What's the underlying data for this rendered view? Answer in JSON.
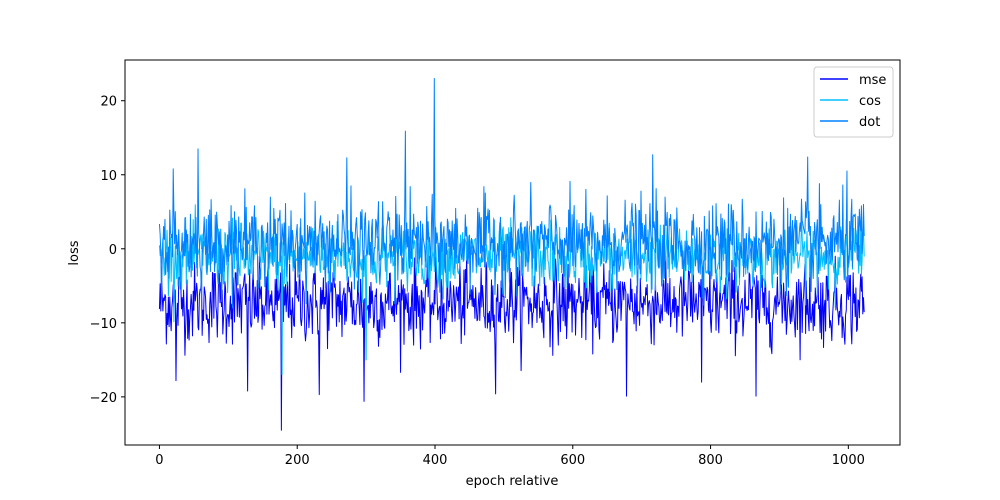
{
  "chart_data": {
    "type": "line",
    "title": "",
    "xlabel": "epoch relative",
    "ylabel": "loss",
    "xlim": [
      -50,
      1075
    ],
    "ylim": [
      -26.5,
      25.5
    ],
    "xticks": [
      0,
      200,
      400,
      600,
      800,
      1000
    ],
    "yticks": [
      -20,
      -10,
      0,
      10,
      20
    ],
    "grid": false,
    "legend_position": "top-right",
    "n_points": 1024,
    "series": [
      {
        "name": "mse",
        "color": "#0000ff",
        "center": -7.3,
        "spread": 2.7,
        "min": -24.5,
        "max": -1.0,
        "notable": [
          {
            "x": 177,
            "y": -24.5
          },
          {
            "x": 297,
            "y": -20.6
          },
          {
            "x": 232,
            "y": -19.7
          },
          {
            "x": 128,
            "y": -19.2
          },
          {
            "x": 488,
            "y": -19.6
          },
          {
            "x": 678,
            "y": -19.9
          },
          {
            "x": 866,
            "y": -19.9
          },
          {
            "x": 787,
            "y": -18.0
          },
          {
            "x": 24,
            "y": -17.8
          }
        ]
      },
      {
        "name": "cos",
        "color": "#00bfff",
        "center": -1.0,
        "spread": 2.2,
        "min": -18.0,
        "max": 6.0,
        "notable": [
          {
            "x": 178,
            "y": -17.0
          },
          {
            "x": 300,
            "y": -15.0
          }
        ]
      },
      {
        "name": "dot",
        "color": "#0080ff",
        "center": 0.8,
        "spread": 2.8,
        "min": -8.0,
        "max": 23.0,
        "notable": [
          {
            "x": 399,
            "y": 23.0
          },
          {
            "x": 357,
            "y": 15.9
          },
          {
            "x": 56,
            "y": 13.5
          },
          {
            "x": 716,
            "y": 12.7
          },
          {
            "x": 941,
            "y": 12.4
          },
          {
            "x": 272,
            "y": 12.3
          },
          {
            "x": 20,
            "y": 10.8
          },
          {
            "x": 998,
            "y": 10.5
          }
        ]
      }
    ]
  }
}
